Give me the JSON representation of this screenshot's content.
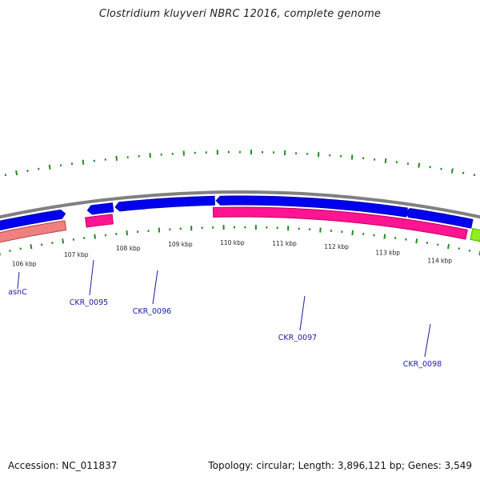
{
  "title": "Clostridium kluyveri NBRC 12016, complete genome",
  "footer": {
    "accession": "Accession: NC_011837",
    "summary": "Topology: circular; Length: 3,896,121 bp; Genes: 3,549"
  },
  "colors": {
    "forward_cds": "#0000ee",
    "reverse_cds": "#ff1493",
    "reverse_cds_faded": "#f08080",
    "gc_ticks": "#1e8c1e",
    "backbone": "#808080",
    "label": "#1a1aa6",
    "next_feature": "#90ee20"
  },
  "scale_ticks": [
    "106 kbp",
    "107 kbp",
    "108 kbp",
    "109 kbp",
    "110 kbp",
    "111 kbp",
    "112 kbp",
    "113 kbp",
    "114 kbp"
  ],
  "genes": [
    {
      "name": "asnC",
      "strand": "forward"
    },
    {
      "name": "CKR_0095",
      "strand": "forward"
    },
    {
      "name": "CKR_0096",
      "strand": "forward"
    },
    {
      "name": "CKR_0097",
      "strand": "forward"
    },
    {
      "name": "CKR_0098",
      "strand": "forward"
    }
  ]
}
